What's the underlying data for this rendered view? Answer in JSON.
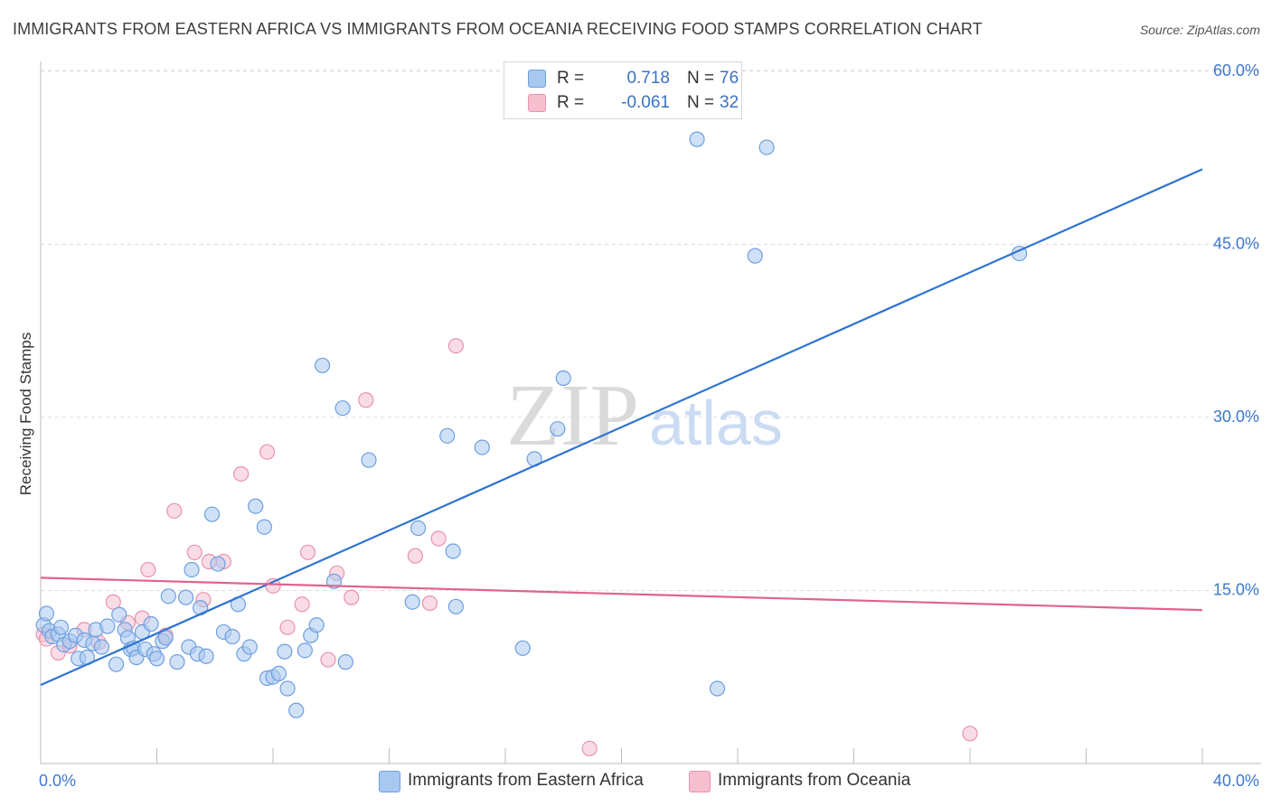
{
  "header": {
    "title": "IMMIGRANTS FROM EASTERN AFRICA VS IMMIGRANTS FROM OCEANIA RECEIVING FOOD STAMPS CORRELATION CHART",
    "source": "Source: ZipAtlas.com"
  },
  "watermark": {
    "part1": "ZIP",
    "part2": "atlas"
  },
  "legend": {
    "series1": {
      "r_label": "R =",
      "r_value": "0.718",
      "n_label": "N =",
      "n_value": "76"
    },
    "series2": {
      "r_label": "R =",
      "r_value": "-0.061",
      "n_label": "N =",
      "n_value": "32"
    }
  },
  "bottom_legend": {
    "series1_label": "Immigrants from Eastern Africa",
    "series2_label": "Immigrants from Oceania"
  },
  "colors": {
    "blue_fill": "#a9c8f0",
    "blue_stroke": "#6e9fe0",
    "blue_line": "#2f74d0",
    "pink_fill": "#f6bfd0",
    "pink_stroke": "#e893ad",
    "pink_line": "#e0638e",
    "axis_text": "#3d78cc",
    "grid": "#dcdcdc"
  },
  "chart_data": {
    "type": "scatter",
    "title": "IMMIGRANTS FROM EASTERN AFRICA VS IMMIGRANTS FROM OCEANIA RECEIVING FOOD STAMPS CORRELATION CHART",
    "xlabel": "",
    "ylabel": "Receiving Food Stamps",
    "xlim": [
      0,
      40
    ],
    "ylim": [
      0,
      60
    ],
    "x_tick_labels": [
      "0.0%",
      "40.0%"
    ],
    "y_ticks": [
      15,
      30,
      45,
      60
    ],
    "y_tick_labels": [
      "15.0%",
      "30.0%",
      "45.0%",
      "60.0%"
    ],
    "grid": true,
    "series": [
      {
        "name": "Immigrants from Eastern Africa",
        "color": "#6e9fe0",
        "points": [
          [
            0.1,
            12.0
          ],
          [
            0.3,
            11.5
          ],
          [
            0.4,
            11.0
          ],
          [
            0.6,
            11.2
          ],
          [
            0.7,
            11.8
          ],
          [
            0.8,
            10.3
          ],
          [
            1.0,
            10.6
          ],
          [
            1.2,
            11.1
          ],
          [
            1.3,
            9.1
          ],
          [
            1.5,
            10.7
          ],
          [
            1.6,
            9.2
          ],
          [
            1.8,
            10.4
          ],
          [
            1.9,
            11.6
          ],
          [
            2.1,
            10.1
          ],
          [
            2.3,
            11.9
          ],
          [
            2.6,
            8.6
          ],
          [
            2.7,
            12.9
          ],
          [
            2.9,
            11.6
          ],
          [
            3.0,
            10.9
          ],
          [
            3.1,
            9.9
          ],
          [
            3.2,
            10.0
          ],
          [
            3.3,
            9.2
          ],
          [
            3.5,
            11.4
          ],
          [
            3.6,
            9.9
          ],
          [
            3.8,
            12.1
          ],
          [
            3.9,
            9.5
          ],
          [
            4.0,
            9.1
          ],
          [
            4.2,
            10.6
          ],
          [
            4.3,
            10.9
          ],
          [
            4.4,
            14.5
          ],
          [
            4.7,
            8.8
          ],
          [
            5.1,
            10.1
          ],
          [
            5.2,
            16.8
          ],
          [
            5.4,
            9.5
          ],
          [
            5.5,
            13.5
          ],
          [
            5.7,
            9.3
          ],
          [
            5.9,
            21.6
          ],
          [
            6.3,
            11.4
          ],
          [
            6.6,
            11.0
          ],
          [
            6.8,
            13.8
          ],
          [
            7.0,
            9.5
          ],
          [
            7.2,
            10.1
          ],
          [
            7.4,
            22.3
          ],
          [
            7.7,
            20.5
          ],
          [
            7.8,
            7.4
          ],
          [
            8.0,
            7.5
          ],
          [
            8.2,
            7.8
          ],
          [
            8.4,
            9.7
          ],
          [
            8.5,
            6.5
          ],
          [
            8.8,
            4.6
          ],
          [
            9.1,
            9.8
          ],
          [
            9.3,
            11.1
          ],
          [
            9.5,
            12.0
          ],
          [
            9.7,
            34.5
          ],
          [
            10.1,
            15.8
          ],
          [
            10.4,
            30.8
          ],
          [
            10.5,
            8.8
          ],
          [
            11.3,
            26.3
          ],
          [
            12.8,
            14.0
          ],
          [
            13.0,
            20.4
          ],
          [
            14.0,
            28.4
          ],
          [
            14.2,
            18.4
          ],
          [
            14.3,
            13.6
          ],
          [
            15.2,
            27.4
          ],
          [
            16.6,
            10.0
          ],
          [
            17.0,
            26.4
          ],
          [
            17.8,
            29.0
          ],
          [
            18.0,
            33.4
          ],
          [
            22.6,
            54.1
          ],
          [
            23.3,
            6.5
          ],
          [
            24.6,
            44.0
          ],
          [
            25.0,
            53.4
          ],
          [
            33.7,
            44.2
          ],
          [
            5.0,
            14.4
          ],
          [
            6.1,
            17.3
          ],
          [
            0.2,
            13.0
          ]
        ],
        "trendline": {
          "x": [
            0,
            40
          ],
          "y": [
            6.8,
            51.5
          ]
        }
      },
      {
        "name": "Immigrants from Oceania",
        "color": "#e893ad",
        "points": [
          [
            0.1,
            11.2
          ],
          [
            0.2,
            10.8
          ],
          [
            0.6,
            9.6
          ],
          [
            1.0,
            10.2
          ],
          [
            1.5,
            11.6
          ],
          [
            2.0,
            10.5
          ],
          [
            2.5,
            14.0
          ],
          [
            3.0,
            12.2
          ],
          [
            3.5,
            12.6
          ],
          [
            3.7,
            16.8
          ],
          [
            4.3,
            11.1
          ],
          [
            4.6,
            21.9
          ],
          [
            5.3,
            18.3
          ],
          [
            5.6,
            14.2
          ],
          [
            5.8,
            17.5
          ],
          [
            6.3,
            17.5
          ],
          [
            6.9,
            25.1
          ],
          [
            7.8,
            27.0
          ],
          [
            8.0,
            15.4
          ],
          [
            8.5,
            11.8
          ],
          [
            9.0,
            13.8
          ],
          [
            9.2,
            18.3
          ],
          [
            9.9,
            9.0
          ],
          [
            10.2,
            16.5
          ],
          [
            10.7,
            14.4
          ],
          [
            11.2,
            31.5
          ],
          [
            12.9,
            18.0
          ],
          [
            13.4,
            13.9
          ],
          [
            13.7,
            19.5
          ],
          [
            14.3,
            36.2
          ],
          [
            18.9,
            1.3
          ],
          [
            32.0,
            2.6
          ]
        ],
        "trendline": {
          "x": [
            0,
            40
          ],
          "y": [
            16.1,
            13.3
          ]
        }
      }
    ]
  }
}
